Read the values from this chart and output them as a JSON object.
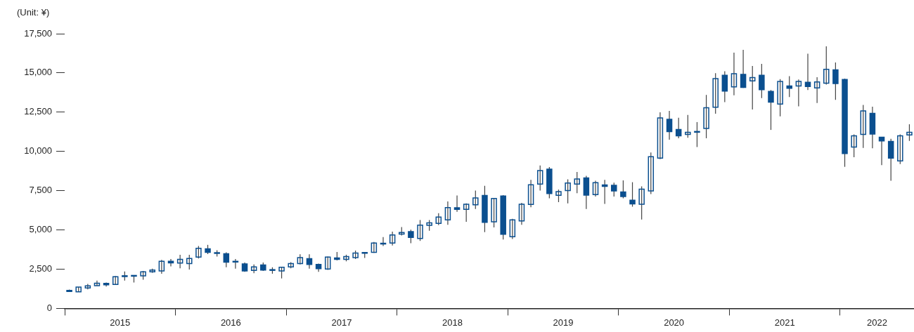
{
  "chart_data": {
    "type": "candlestick",
    "ylabel": "(Unit: ¥)",
    "color": "#0b4f8f",
    "x": [
      "2015-01-16",
      "2015-02-16",
      "2015-03-16",
      "2015-04-16",
      "2015-05-16",
      "2015-06-16",
      "2015-07-16",
      "2015-08-16",
      "2015-09-16",
      "2015-10-16",
      "2015-11-16",
      "2015-12-16",
      "2016-01-16",
      "2016-02-16",
      "2016-03-16",
      "2016-04-16",
      "2016-05-16",
      "2016-06-16",
      "2016-07-16",
      "2016-08-16",
      "2016-09-16",
      "2016-10-16",
      "2016-11-16",
      "2016-12-16",
      "2017-01-16",
      "2017-02-16",
      "2017-03-16",
      "2017-04-16",
      "2017-05-16",
      "2017-06-16",
      "2017-07-16",
      "2017-08-16",
      "2017-09-16",
      "2017-10-16",
      "2017-11-16",
      "2017-12-16",
      "2018-01-16",
      "2018-02-16",
      "2018-03-16",
      "2018-04-16",
      "2018-05-16",
      "2018-06-16",
      "2018-07-16",
      "2018-08-16",
      "2018-09-16",
      "2018-10-16",
      "2018-11-16",
      "2018-12-16",
      "2019-01-16",
      "2019-02-16",
      "2019-03-16",
      "2019-04-16",
      "2019-05-16",
      "2019-06-16",
      "2019-07-16",
      "2019-08-16",
      "2019-09-16",
      "2019-10-16",
      "2019-11-16",
      "2019-12-16",
      "2020-01-16",
      "2020-02-16",
      "2020-03-16",
      "2020-04-16",
      "2020-05-16",
      "2020-06-16",
      "2020-07-16",
      "2020-08-16",
      "2020-09-16",
      "2020-10-16",
      "2020-11-16",
      "2020-12-16",
      "2021-01-16",
      "2021-02-16",
      "2021-03-16",
      "2021-04-16",
      "2021-05-16",
      "2021-06-16",
      "2021-07-16",
      "2021-08-16",
      "2021-09-16",
      "2021-10-16",
      "2021-11-16",
      "2021-12-16",
      "2022-01-16",
      "2022-02-16",
      "2022-03-16",
      "2022-04-16",
      "2022-05-16",
      "2022-06-16",
      "2022-07-16",
      "2022-08-16"
    ],
    "ohlc": [
      [
        1150,
        1200,
        1050,
        1080
      ],
      [
        1060,
        1360,
        1060,
        1360
      ],
      [
        1300,
        1560,
        1210,
        1440
      ],
      [
        1450,
        1770,
        1450,
        1600
      ],
      [
        1590,
        1650,
        1390,
        1500
      ],
      [
        1530,
        2060,
        1500,
        2020
      ],
      [
        2080,
        2350,
        1770,
        2030
      ],
      [
        2060,
        2110,
        1650,
        2100
      ],
      [
        2070,
        2390,
        1830,
        2330
      ],
      [
        2330,
        2530,
        2270,
        2440
      ],
      [
        2390,
        3090,
        2210,
        3000
      ],
      [
        3000,
        3150,
        2680,
        2900
      ],
      [
        2890,
        3420,
        2560,
        3120
      ],
      [
        2860,
        3420,
        2480,
        3180
      ],
      [
        3270,
        3980,
        3180,
        3830
      ],
      [
        3800,
        4050,
        3460,
        3570
      ],
      [
        3550,
        3710,
        3300,
        3520
      ],
      [
        3480,
        3570,
        2620,
        2950
      ],
      [
        3000,
        3150,
        2530,
        2980
      ],
      [
        2830,
        2920,
        2330,
        2390
      ],
      [
        2420,
        2800,
        2240,
        2650
      ],
      [
        2770,
        2920,
        2390,
        2440
      ],
      [
        2470,
        2620,
        2210,
        2450
      ],
      [
        2390,
        2620,
        1910,
        2620
      ],
      [
        2650,
        2950,
        2560,
        2860
      ],
      [
        2860,
        3450,
        2800,
        3240
      ],
      [
        3170,
        3450,
        2530,
        2800
      ],
      [
        2800,
        2860,
        2330,
        2530
      ],
      [
        2510,
        3300,
        2460,
        3270
      ],
      [
        3210,
        3590,
        3060,
        3130
      ],
      [
        3130,
        3420,
        3000,
        3300
      ],
      [
        3240,
        3680,
        3150,
        3530
      ],
      [
        3540,
        3590,
        3210,
        3560
      ],
      [
        3570,
        4230,
        3540,
        4170
      ],
      [
        4130,
        4540,
        3980,
        4150
      ],
      [
        4170,
        4890,
        4010,
        4680
      ],
      [
        4730,
        5180,
        4650,
        4830
      ],
      [
        4890,
        5010,
        4150,
        4520
      ],
      [
        4450,
        5630,
        4300,
        5300
      ],
      [
        5290,
        5630,
        4950,
        5450
      ],
      [
        5420,
        6070,
        5300,
        5820
      ],
      [
        5640,
        6810,
        5330,
        6420
      ],
      [
        6410,
        7190,
        6160,
        6310
      ],
      [
        6310,
        6690,
        5520,
        6630
      ],
      [
        6600,
        7510,
        6330,
        7040
      ],
      [
        7190,
        7810,
        4860,
        5480
      ],
      [
        5520,
        7010,
        5160,
        7000
      ],
      [
        7160,
        7220,
        4390,
        4720
      ],
      [
        4570,
        5710,
        4420,
        5640
      ],
      [
        5570,
        6720,
        5330,
        6640
      ],
      [
        6620,
        8190,
        6450,
        7880
      ],
      [
        7920,
        9100,
        7510,
        8780
      ],
      [
        8870,
        9010,
        7010,
        7320
      ],
      [
        7200,
        7570,
        6770,
        7440
      ],
      [
        7510,
        8220,
        6690,
        7990
      ],
      [
        7920,
        8690,
        7340,
        8250
      ],
      [
        8310,
        8450,
        6330,
        7220
      ],
      [
        7250,
        8130,
        7130,
        8010
      ],
      [
        7860,
        8190,
        6660,
        7770
      ],
      [
        7840,
        8010,
        7130,
        7480
      ],
      [
        7420,
        8160,
        7010,
        7130
      ],
      [
        6890,
        8040,
        6480,
        6660
      ],
      [
        6630,
        7780,
        5660,
        7600
      ],
      [
        7480,
        9930,
        7280,
        9660
      ],
      [
        9580,
        12490,
        9510,
        12140
      ],
      [
        12050,
        12580,
        10750,
        11260
      ],
      [
        11400,
        12150,
        10840,
        10990
      ],
      [
        11080,
        12320,
        10870,
        11220
      ],
      [
        11240,
        11870,
        10280,
        11270
      ],
      [
        11460,
        13600,
        10840,
        12780
      ],
      [
        12820,
        14990,
        12400,
        14640
      ],
      [
        14850,
        15110,
        13140,
        13850
      ],
      [
        14110,
        16290,
        13580,
        14950
      ],
      [
        14910,
        16470,
        14050,
        14080
      ],
      [
        14490,
        15440,
        12670,
        14700
      ],
      [
        14850,
        15580,
        13400,
        13930
      ],
      [
        13820,
        13910,
        11370,
        13140
      ],
      [
        13020,
        14610,
        12230,
        14460
      ],
      [
        14170,
        14790,
        13470,
        14020
      ],
      [
        14170,
        14580,
        12870,
        14460
      ],
      [
        14400,
        16230,
        13910,
        14140
      ],
      [
        14050,
        14730,
        13080,
        14430
      ],
      [
        14350,
        16700,
        14260,
        15230
      ],
      [
        15200,
        15670,
        13290,
        14320
      ],
      [
        14580,
        14640,
        9020,
        9870
      ],
      [
        10280,
        11080,
        9630,
        10990
      ],
      [
        11080,
        12960,
        10220,
        12580
      ],
      [
        12430,
        12850,
        10200,
        11110
      ],
      [
        10900,
        10930,
        9130,
        10670
      ],
      [
        10640,
        10810,
        8130,
        9580
      ],
      [
        9400,
        11080,
        9190,
        10990
      ],
      [
        11050,
        11730,
        10670,
        11220
      ]
    ],
    "xlim": [
      "2015-01-01",
      "2022-09-01"
    ],
    "xticks": [
      {
        "value": "2015-01-01",
        "label": null
      },
      {
        "value": "2015-07-01",
        "label": "2015"
      },
      {
        "value": "2016-01-01",
        "label": null
      },
      {
        "value": "2016-07-01",
        "label": "2016"
      },
      {
        "value": "2017-01-01",
        "label": null
      },
      {
        "value": "2017-07-01",
        "label": "2017"
      },
      {
        "value": "2018-01-01",
        "label": null
      },
      {
        "value": "2018-07-01",
        "label": "2018"
      },
      {
        "value": "2019-01-01",
        "label": null
      },
      {
        "value": "2019-07-01",
        "label": "2019"
      },
      {
        "value": "2020-01-01",
        "label": null
      },
      {
        "value": "2020-07-01",
        "label": "2020"
      },
      {
        "value": "2021-01-01",
        "label": null
      },
      {
        "value": "2021-07-01",
        "label": "2021"
      },
      {
        "value": "2022-01-01",
        "label": null
      },
      {
        "value": "2022-05-01",
        "label": "2022"
      }
    ],
    "ylim": [
      0,
      17500
    ],
    "yticks": [
      0,
      {
        "value": 2500,
        "label": "2,500"
      },
      {
        "value": 5000,
        "label": "5,000"
      },
      {
        "value": 7500,
        "label": "7,500"
      },
      {
        "value": 10000,
        "label": "10,000"
      },
      {
        "value": 12500,
        "label": "12,500"
      },
      {
        "value": 15000,
        "label": "15,000"
      },
      {
        "value": 17500,
        "label": "17,500"
      }
    ],
    "grid": false,
    "legend": false
  }
}
